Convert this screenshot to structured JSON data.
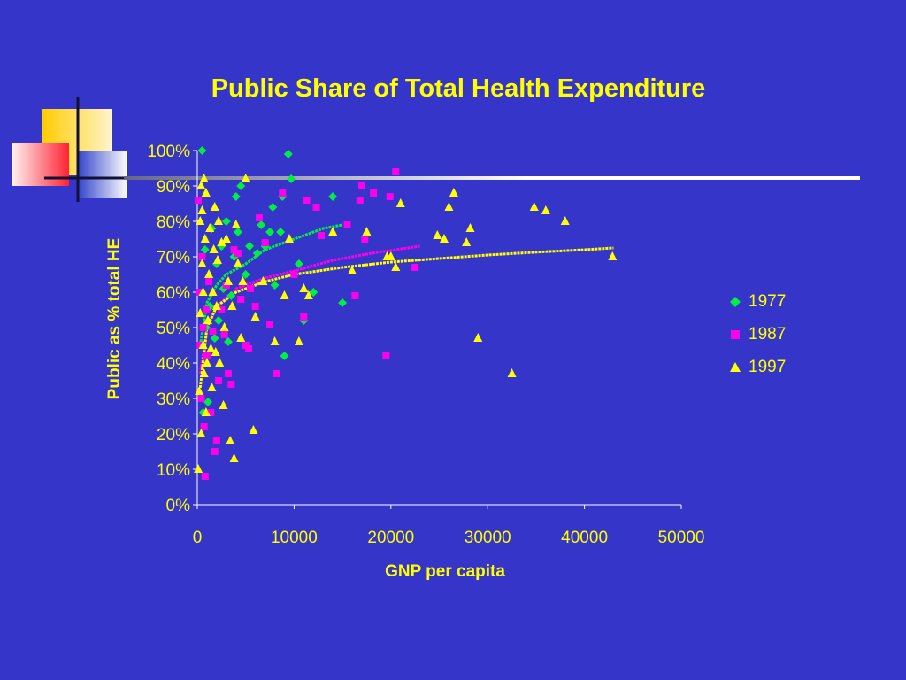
{
  "chart_data": {
    "type": "scatter",
    "title": "Public Share of Total Health Expenditure",
    "xlabel": "GNP per capita",
    "ylabel": "Public as % total HE",
    "xlim": [
      0,
      50000
    ],
    "ylim": [
      0,
      100
    ],
    "x_ticks": [
      "0",
      "10000",
      "20000",
      "30000",
      "40000",
      "50000"
    ],
    "y_ticks": [
      "0%",
      "10%",
      "20%",
      "30%",
      "40%",
      "50%",
      "60%",
      "70%",
      "80%",
      "90%",
      "100%"
    ],
    "grid": false,
    "legend_position": "right",
    "series": [
      {
        "name": "1977",
        "color": "#00ee44",
        "marker": "diamond",
        "points": [
          [
            500,
            100
          ],
          [
            600,
            26
          ],
          [
            800,
            72
          ],
          [
            900,
            50
          ],
          [
            1100,
            29
          ],
          [
            1300,
            56
          ],
          [
            1500,
            78
          ],
          [
            1800,
            47
          ],
          [
            2000,
            68
          ],
          [
            2200,
            52
          ],
          [
            2500,
            73
          ],
          [
            2700,
            61
          ],
          [
            3000,
            80
          ],
          [
            3200,
            46
          ],
          [
            3500,
            59
          ],
          [
            3800,
            70
          ],
          [
            4000,
            87
          ],
          [
            4200,
            77
          ],
          [
            4500,
            90
          ],
          [
            5000,
            65
          ],
          [
            5400,
            73
          ],
          [
            6200,
            71
          ],
          [
            6600,
            79
          ],
          [
            7000,
            73
          ],
          [
            7500,
            77
          ],
          [
            7800,
            84
          ],
          [
            8000,
            62
          ],
          [
            8600,
            77
          ],
          [
            8800,
            87
          ],
          [
            9000,
            42
          ],
          [
            9400,
            99
          ],
          [
            9700,
            92
          ],
          [
            10500,
            68
          ],
          [
            11000,
            52
          ],
          [
            12000,
            60
          ],
          [
            14000,
            87
          ],
          [
            15000,
            57
          ]
        ],
        "trend": [
          [
            300,
            45
          ],
          [
            1000,
            57
          ],
          [
            2000,
            62
          ],
          [
            3000,
            65
          ],
          [
            5000,
            68
          ],
          [
            7000,
            72
          ],
          [
            10000,
            75
          ],
          [
            13000,
            78
          ],
          [
            15000,
            79
          ]
        ]
      },
      {
        "name": "1987",
        "color": "#ff00ee",
        "marker": "square",
        "points": [
          [
            100,
            86
          ],
          [
            200,
            60
          ],
          [
            300,
            45
          ],
          [
            400,
            30
          ],
          [
            500,
            70
          ],
          [
            600,
            50
          ],
          [
            700,
            22
          ],
          [
            800,
            8
          ],
          [
            900,
            55
          ],
          [
            1000,
            42
          ],
          [
            1200,
            63
          ],
          [
            1400,
            26
          ],
          [
            1600,
            49
          ],
          [
            1800,
            15
          ],
          [
            2000,
            18
          ],
          [
            2200,
            35
          ],
          [
            2500,
            55
          ],
          [
            2800,
            48
          ],
          [
            3000,
            62
          ],
          [
            3200,
            37
          ],
          [
            3500,
            34
          ],
          [
            3800,
            72
          ],
          [
            4200,
            71
          ],
          [
            4500,
            58
          ],
          [
            5000,
            45
          ],
          [
            5300,
            44
          ],
          [
            5500,
            61
          ],
          [
            6000,
            56
          ],
          [
            6400,
            81
          ],
          [
            7000,
            74
          ],
          [
            7500,
            51
          ],
          [
            8200,
            37
          ],
          [
            8800,
            88
          ],
          [
            10000,
            65
          ],
          [
            11000,
            53
          ],
          [
            11300,
            86
          ],
          [
            12300,
            84
          ],
          [
            12800,
            76
          ],
          [
            15500,
            79
          ],
          [
            16300,
            59
          ],
          [
            16800,
            86
          ],
          [
            17000,
            90
          ],
          [
            17300,
            75
          ],
          [
            18200,
            88
          ],
          [
            19500,
            42
          ],
          [
            19900,
            87
          ],
          [
            20500,
            94
          ],
          [
            22500,
            67
          ]
        ],
        "trend": [
          [
            300,
            37
          ],
          [
            1000,
            50
          ],
          [
            2000,
            56
          ],
          [
            4000,
            61
          ],
          [
            7000,
            64
          ],
          [
            10000,
            66
          ],
          [
            14000,
            69
          ],
          [
            18000,
            71
          ],
          [
            23000,
            73
          ]
        ]
      },
      {
        "name": "1997",
        "color": "#ffff00",
        "marker": "triangle",
        "points": [
          [
            100,
            10
          ],
          [
            200,
            32
          ],
          [
            300,
            54
          ],
          [
            300,
            80
          ],
          [
            400,
            90
          ],
          [
            400,
            20
          ],
          [
            500,
            68
          ],
          [
            500,
            83
          ],
          [
            600,
            60
          ],
          [
            600,
            45
          ],
          [
            700,
            37
          ],
          [
            700,
            92
          ],
          [
            800,
            75
          ],
          [
            900,
            26
          ],
          [
            900,
            88
          ],
          [
            1000,
            40
          ],
          [
            1100,
            52
          ],
          [
            1200,
            65
          ],
          [
            1300,
            78
          ],
          [
            1400,
            44
          ],
          [
            1500,
            33
          ],
          [
            1600,
            60
          ],
          [
            1700,
            72
          ],
          [
            1800,
            84
          ],
          [
            1900,
            43
          ],
          [
            2000,
            56
          ],
          [
            2100,
            69
          ],
          [
            2200,
            80
          ],
          [
            2300,
            40
          ],
          [
            2500,
            74
          ],
          [
            2700,
            28
          ],
          [
            2800,
            50
          ],
          [
            3000,
            75
          ],
          [
            3200,
            63
          ],
          [
            3400,
            18
          ],
          [
            3600,
            56
          ],
          [
            3800,
            13
          ],
          [
            4000,
            79
          ],
          [
            4200,
            68
          ],
          [
            4500,
            47
          ],
          [
            4700,
            63
          ],
          [
            5000,
            92
          ],
          [
            5800,
            21
          ],
          [
            6000,
            53
          ],
          [
            6800,
            63
          ],
          [
            8000,
            46
          ],
          [
            9000,
            59
          ],
          [
            9500,
            75
          ],
          [
            10500,
            46
          ],
          [
            11000,
            61
          ],
          [
            11500,
            59
          ],
          [
            14000,
            77
          ],
          [
            16000,
            66
          ],
          [
            17500,
            77
          ],
          [
            19600,
            70
          ],
          [
            20000,
            70
          ],
          [
            20500,
            67
          ],
          [
            21000,
            85
          ],
          [
            24800,
            76
          ],
          [
            25500,
            75
          ],
          [
            26000,
            84
          ],
          [
            26500,
            88
          ],
          [
            27800,
            74
          ],
          [
            28200,
            78
          ],
          [
            29000,
            47
          ],
          [
            32500,
            37
          ],
          [
            34800,
            84
          ],
          [
            36000,
            83
          ],
          [
            38000,
            80
          ],
          [
            42900,
            70
          ]
        ],
        "trend": [
          [
            300,
            33
          ],
          [
            1000,
            50
          ],
          [
            2000,
            56
          ],
          [
            4000,
            60
          ],
          [
            7000,
            63
          ],
          [
            10000,
            65
          ],
          [
            15000,
            67
          ],
          [
            20000,
            68.5
          ],
          [
            25000,
            69.5
          ],
          [
            30000,
            70.5
          ],
          [
            35000,
            71.3
          ],
          [
            40000,
            72
          ],
          [
            43000,
            72.5
          ]
        ]
      }
    ]
  },
  "legend": {
    "items": [
      "1977",
      "1987",
      "1997"
    ]
  },
  "decor": {
    "square_colors": [
      "#ffcc00",
      "#ff3344",
      "#4455dd"
    ],
    "rule_color": "#ffffff"
  }
}
